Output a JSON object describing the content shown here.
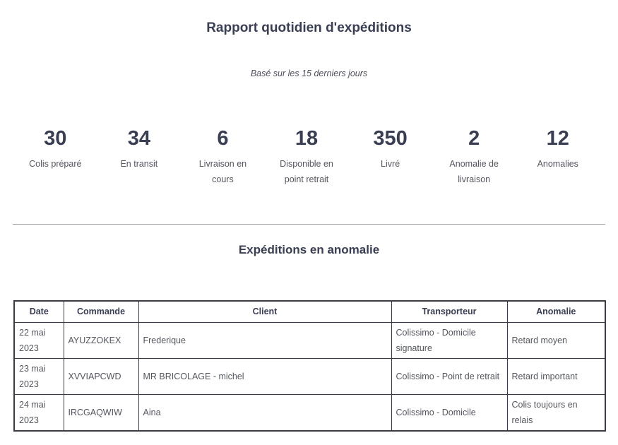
{
  "header": {
    "title": "Rapport quotidien d'expéditions",
    "subtitle": "Basé sur les 15 derniers jours"
  },
  "stats": [
    {
      "value": "30",
      "label": "Colis préparé"
    },
    {
      "value": "34",
      "label": "En transit"
    },
    {
      "value": "6",
      "label": "Livraison en cours"
    },
    {
      "value": "18",
      "label": "Disponible en point retrait"
    },
    {
      "value": "350",
      "label": "Livré"
    },
    {
      "value": "2",
      "label": "Anomalie de livraison"
    },
    {
      "value": "12",
      "label": "Anomalies"
    }
  ],
  "anomalies": {
    "section_title": "Expéditions en anomalie",
    "table": {
      "headers": [
        "Date",
        "Commande",
        "Client",
        "Transporteur",
        "Anomalie"
      ],
      "rows": [
        [
          "22 mai 2023",
          "AYUZZOKEX",
          "Frederique",
          "Colissimo - Domicile signature",
          "Retard moyen"
        ],
        [
          "23 mai 2023",
          "XVVIAPCWD",
          "MR BRICOLAGE - michel",
          "Colissimo - Point de retrait",
          "Retard important"
        ],
        [
          "24 mai 2023",
          "IRCGAQWIW",
          "Aina",
          "Colissimo - Domicile",
          "Colis toujours en relais"
        ]
      ]
    }
  },
  "colors": {
    "heading_text": "#3a3e52",
    "body_text": "#54565e",
    "table_border": "#3b3b46",
    "divider": "#a2a2aa"
  }
}
